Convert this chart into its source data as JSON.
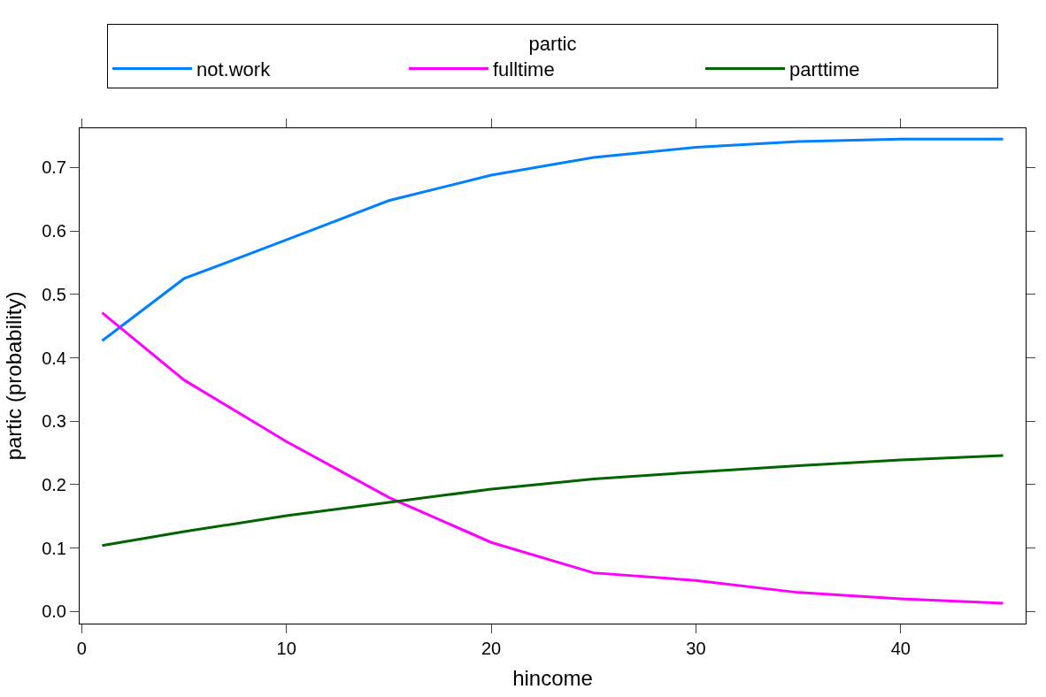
{
  "chart_data": {
    "type": "line",
    "xlabel": "hincome",
    "ylabel": "partic (probability)",
    "legend_title": "partic",
    "legend": "top",
    "x": [
      1,
      5,
      10,
      15,
      20,
      25,
      30,
      35,
      40,
      45
    ],
    "series": [
      {
        "name": "not.work",
        "color": "#0080ff",
        "values": [
          0.427,
          0.525,
          0.586,
          0.648,
          0.688,
          0.716,
          0.732,
          0.741,
          0.745,
          0.745
        ]
      },
      {
        "name": "fulltime",
        "color": "#ff00ff",
        "values": [
          0.471,
          0.365,
          0.268,
          0.18,
          0.109,
          0.061,
          0.049,
          0.03,
          0.02,
          0.013
        ]
      },
      {
        "name": "parttime",
        "color": "#006400",
        "values": [
          0.104,
          0.126,
          0.151,
          0.172,
          0.193,
          0.209,
          0.22,
          0.23,
          0.239,
          0.246
        ]
      }
    ],
    "xlim": [
      -0.1,
      46.1
    ],
    "ylim": [
      -0.019,
      0.762
    ],
    "xticks": [
      0,
      10,
      20,
      30,
      40
    ],
    "yticks": [
      {
        "value": 0,
        "label": "0.0"
      },
      {
        "value": 0.1,
        "label": "0.1"
      },
      {
        "value": 0.2,
        "label": "0.2"
      },
      {
        "value": 0.3,
        "label": "0.3"
      },
      {
        "value": 0.4,
        "label": "0.4"
      },
      {
        "value": 0.5,
        "label": "0.5"
      },
      {
        "value": 0.6,
        "label": "0.6"
      },
      {
        "value": 0.7,
        "label": "0.7"
      }
    ],
    "line_style": "solid",
    "marker": "none"
  }
}
